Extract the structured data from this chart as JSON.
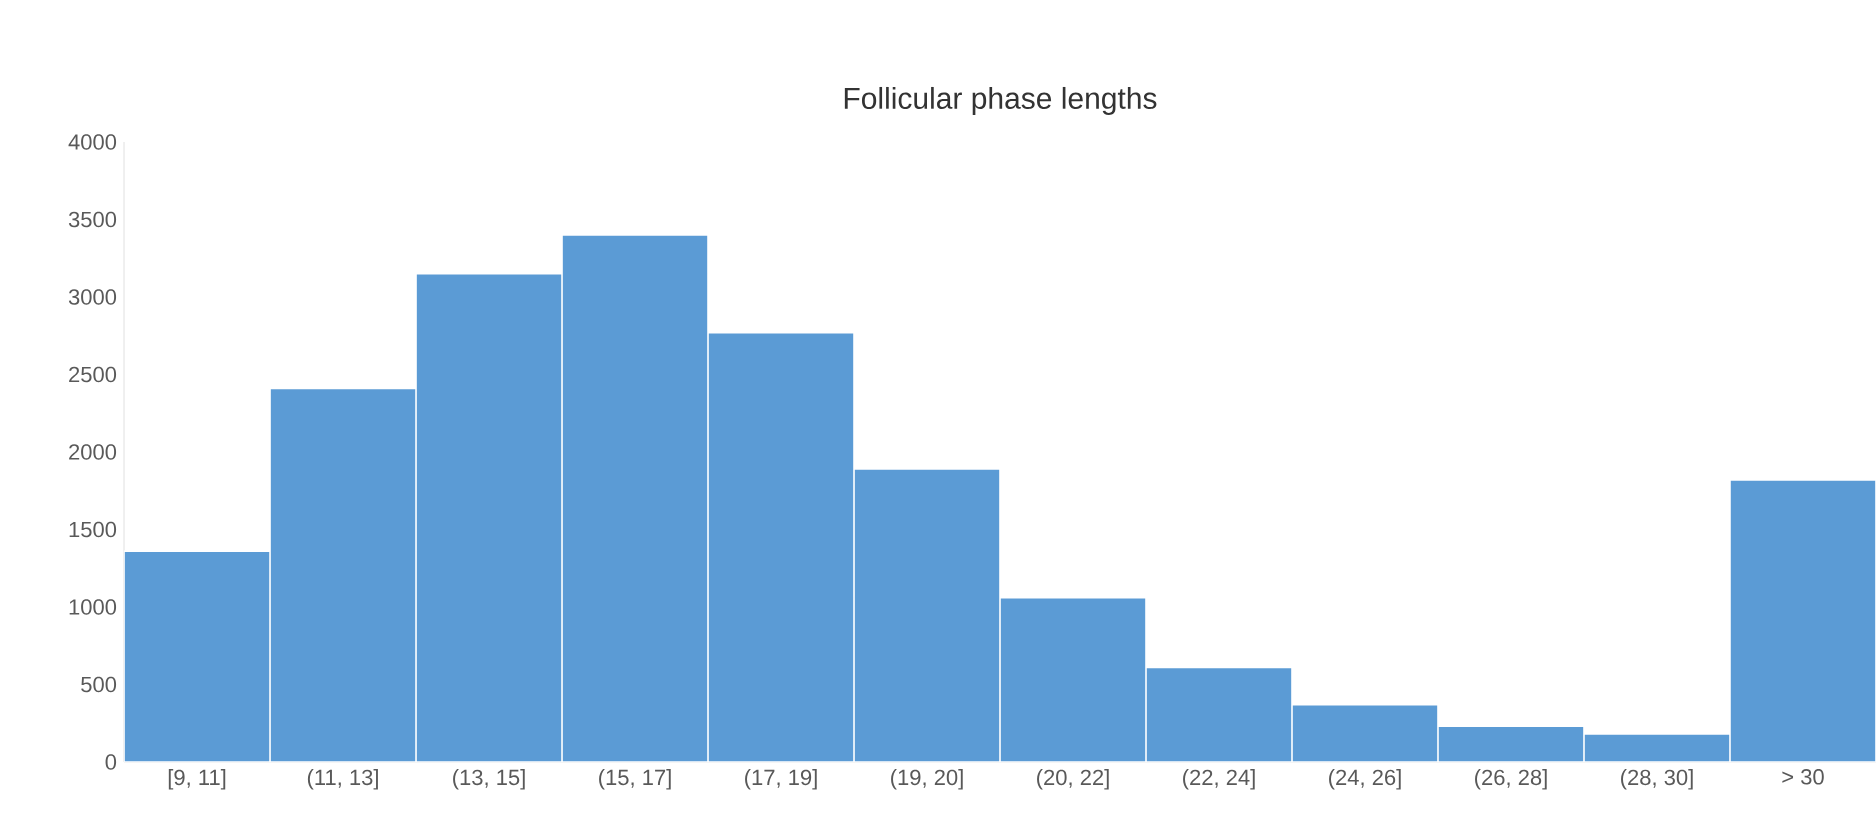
{
  "chart_data": {
    "type": "bar",
    "title": "Follicular phase lengths",
    "categories": [
      "[9, 11]",
      "(11, 13]",
      "(13, 15]",
      "(15, 17]",
      "(17, 19]",
      "(19, 20]",
      "(20, 22]",
      "(22, 24]",
      "(24, 26]",
      "(26, 28]",
      "(28, 30]",
      "> 30"
    ],
    "values": [
      1360,
      2410,
      3150,
      3400,
      2770,
      1890,
      1060,
      610,
      370,
      230,
      180,
      1820
    ],
    "color": "#5b9bd5",
    "ylim": [
      0,
      4000
    ],
    "yticks": [
      0,
      500,
      1000,
      1500,
      2000,
      2500,
      3000,
      3500,
      4000
    ],
    "grid": false
  }
}
